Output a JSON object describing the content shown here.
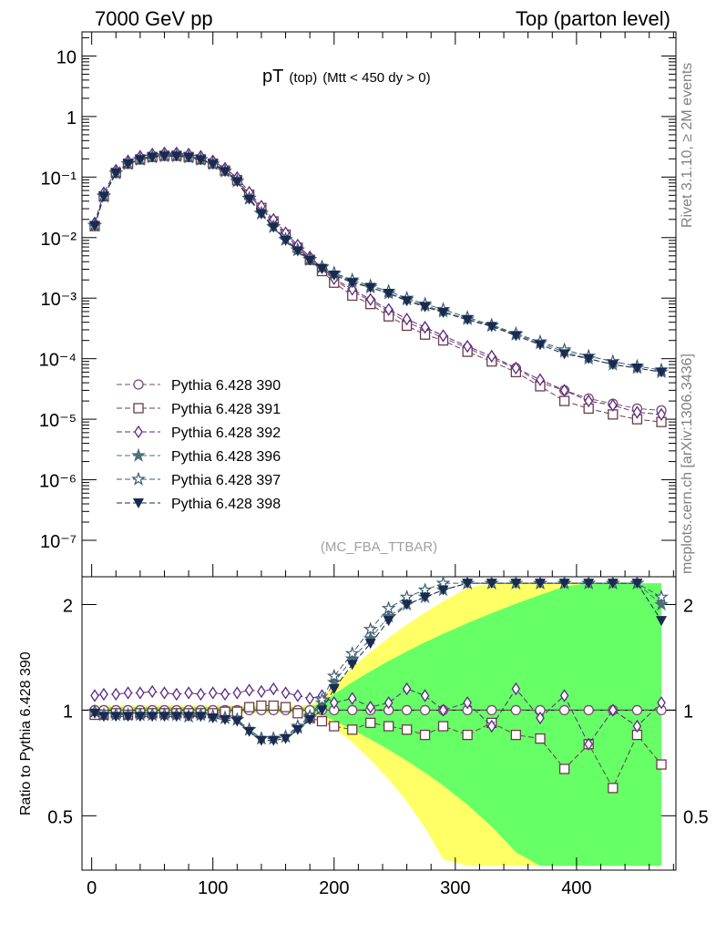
{
  "header": {
    "energy": "7000 GeV pp",
    "process": "Top (parton level)"
  },
  "side_labels": {
    "rivet": "Rivet 3.1.10, ≥ 2M events",
    "source": "mcplots.cern.ch [arXiv:1306.3436]"
  },
  "plot": {
    "title_main": "pT",
    "title_sub": "(top)",
    "title_cut": "(Mtt < 450 dy > 0)",
    "analysis_tag": "(MC_FBA_TTBAR)",
    "ratio_ylabel": "Ratio to Pythia 6.428 390"
  },
  "colors": {
    "s390": "#7b4a74",
    "s391": "#6e3a4a",
    "s392": "#5a2a82",
    "s396": "#4c7078",
    "s397": "#3a5a70",
    "s398": "#1a2a50",
    "band_yellow": "#ffff66",
    "band_green": "#66ff66"
  },
  "chart_data": {
    "type": "line",
    "x_axis": {
      "range": [
        -8,
        482
      ],
      "ticks": [
        0,
        100,
        200,
        300,
        400
      ]
    },
    "main_y_axis": {
      "scale": "log",
      "range": [
        2.5e-08,
        25
      ],
      "tick_labels": [
        "10⁻⁷",
        "10⁻⁶",
        "10⁻⁵",
        "10⁻⁴",
        "10⁻³",
        "10⁻²",
        "10⁻¹",
        "1",
        "10"
      ]
    },
    "ratio_y_axis": {
      "scale": "log",
      "range": [
        0.35,
        2.4
      ],
      "tick_labels": [
        "0.5",
        "1",
        "2"
      ]
    },
    "legend_position": "middle-left",
    "x": [
      2.5,
      10,
      20,
      30,
      40,
      50,
      60,
      70,
      80,
      90,
      100,
      110,
      120,
      130,
      140,
      150,
      160,
      170,
      180,
      190,
      200,
      215,
      230,
      245,
      260,
      275,
      290,
      310,
      330,
      350,
      370,
      390,
      410,
      430,
      450,
      470
    ],
    "series": [
      {
        "name": "Pythia 6.428 390",
        "marker": "circle-open",
        "values": [
          0.016,
          0.05,
          0.12,
          0.17,
          0.2,
          0.22,
          0.23,
          0.23,
          0.22,
          0.2,
          0.17,
          0.13,
          0.09,
          0.05,
          0.03,
          0.018,
          0.011,
          0.007,
          0.0045,
          0.003,
          0.002,
          0.0013,
          0.0009,
          0.0006,
          0.0004,
          0.0003,
          0.00022,
          0.00015,
          0.0001,
          7e-05,
          4e-05,
          3e-05,
          2.2e-05,
          1.8e-05,
          1.5e-05,
          1.4e-05
        ],
        "ratio": [
          1,
          1,
          1,
          1,
          1,
          1,
          1,
          1,
          1,
          1,
          1,
          1,
          1,
          1,
          1,
          1,
          1,
          1,
          1,
          1,
          1,
          1,
          1,
          1,
          1,
          1,
          1,
          1,
          1,
          1,
          1,
          1,
          1,
          1,
          1,
          1
        ]
      },
      {
        "name": "Pythia 6.428 391",
        "marker": "square-open",
        "values": [
          0.0155,
          0.048,
          0.117,
          0.166,
          0.196,
          0.215,
          0.225,
          0.225,
          0.215,
          0.196,
          0.167,
          0.128,
          0.089,
          0.051,
          0.031,
          0.0185,
          0.0112,
          0.0068,
          0.0043,
          0.0028,
          0.0018,
          0.0011,
          0.0008,
          0.0005,
          0.00035,
          0.00025,
          0.0002,
          0.00013,
          9e-05,
          6e-05,
          3.5e-05,
          2e-05,
          1.5e-05,
          1.2e-05,
          1e-05,
          9e-06
        ],
        "ratio": [
          0.97,
          0.97,
          0.98,
          0.97,
          0.98,
          0.98,
          0.98,
          0.98,
          0.98,
          0.98,
          0.98,
          0.99,
          0.99,
          1.02,
          1.03,
          1.03,
          1.02,
          0.98,
          0.95,
          0.93,
          0.9,
          0.88,
          0.92,
          0.9,
          0.88,
          0.85,
          0.9,
          0.85,
          0.92,
          0.85,
          0.83,
          0.68,
          0.8,
          0.6,
          0.85,
          0.7
        ]
      },
      {
        "name": "Pythia 6.428 392",
        "marker": "diamond-open",
        "values": [
          0.0175,
          0.055,
          0.13,
          0.185,
          0.22,
          0.24,
          0.25,
          0.25,
          0.24,
          0.22,
          0.185,
          0.14,
          0.098,
          0.056,
          0.033,
          0.02,
          0.012,
          0.0075,
          0.0048,
          0.0032,
          0.0021,
          0.0014,
          0.00095,
          0.00065,
          0.00045,
          0.00033,
          0.00024,
          0.00016,
          0.00011,
          7e-05,
          4.5e-05,
          3e-05,
          2e-05,
          1.7e-05,
          1.3e-05,
          1.2e-05
        ],
        "ratio": [
          1.1,
          1.11,
          1.11,
          1.12,
          1.12,
          1.13,
          1.12,
          1.11,
          1.12,
          1.11,
          1.12,
          1.11,
          1.12,
          1.14,
          1.13,
          1.15,
          1.12,
          1.1,
          1.08,
          1.1,
          1.05,
          1.08,
          1.02,
          1.05,
          1.15,
          1.1,
          1.0,
          1.05,
          0.9,
          1.15,
          0.95,
          1.1,
          0.8,
          1.0,
          0.9,
          1.05
        ]
      },
      {
        "name": "Pythia 6.428 396",
        "marker": "star-filled",
        "values": [
          0.0158,
          0.048,
          0.116,
          0.165,
          0.194,
          0.213,
          0.222,
          0.222,
          0.212,
          0.194,
          0.164,
          0.124,
          0.085,
          0.044,
          0.025,
          0.015,
          0.0092,
          0.0062,
          0.0043,
          0.0032,
          0.0025,
          0.0019,
          0.0015,
          0.0012,
          0.00095,
          0.00075,
          0.0006,
          0.00045,
          0.00035,
          0.00025,
          0.00018,
          0.00013,
          0.0001,
          8e-05,
          7e-05,
          6e-05
        ],
        "ratio": [
          0.99,
          0.97,
          0.97,
          0.97,
          0.97,
          0.97,
          0.97,
          0.97,
          0.96,
          0.97,
          0.96,
          0.95,
          0.94,
          0.88,
          0.83,
          0.83,
          0.84,
          0.89,
          0.95,
          1.05,
          1.2,
          1.4,
          1.6,
          1.85,
          2.0,
          2.1,
          2.2,
          2.3,
          2.3,
          2.3,
          2.3,
          2.3,
          2.3,
          2.3,
          2.3,
          2.0
        ]
      },
      {
        "name": "Pythia 6.428 397",
        "marker": "star-open",
        "values": [
          0.016,
          0.049,
          0.117,
          0.166,
          0.195,
          0.214,
          0.223,
          0.223,
          0.213,
          0.195,
          0.165,
          0.125,
          0.086,
          0.045,
          0.0255,
          0.0152,
          0.0094,
          0.0063,
          0.0044,
          0.0033,
          0.0026,
          0.002,
          0.0016,
          0.0013,
          0.001,
          0.0008,
          0.00065,
          0.00048,
          0.00036,
          0.00026,
          0.00019,
          0.00014,
          0.00011,
          9e-05,
          7.5e-05,
          6.5e-05
        ],
        "ratio": [
          0.99,
          0.97,
          0.97,
          0.97,
          0.97,
          0.97,
          0.97,
          0.97,
          0.96,
          0.97,
          0.96,
          0.95,
          0.94,
          0.88,
          0.83,
          0.83,
          0.84,
          0.9,
          0.96,
          1.07,
          1.25,
          1.45,
          1.7,
          1.95,
          2.1,
          2.2,
          2.3,
          2.3,
          2.3,
          2.3,
          2.3,
          2.3,
          2.3,
          2.3,
          2.3,
          2.1
        ]
      },
      {
        "name": "Pythia 6.428 398",
        "marker": "triangle-down-filled",
        "values": [
          0.0157,
          0.048,
          0.116,
          0.165,
          0.194,
          0.213,
          0.222,
          0.222,
          0.212,
          0.193,
          0.163,
          0.123,
          0.084,
          0.043,
          0.0245,
          0.0148,
          0.009,
          0.006,
          0.0042,
          0.0031,
          0.0024,
          0.0018,
          0.0015,
          0.0012,
          0.0009,
          0.00072,
          0.00058,
          0.00044,
          0.00034,
          0.00024,
          0.00017,
          0.00012,
          0.0001,
          8e-05,
          7e-05,
          6e-05
        ],
        "ratio": [
          0.98,
          0.96,
          0.96,
          0.96,
          0.96,
          0.96,
          0.96,
          0.96,
          0.96,
          0.96,
          0.95,
          0.94,
          0.93,
          0.87,
          0.82,
          0.82,
          0.83,
          0.88,
          0.94,
          1.0,
          1.15,
          1.35,
          1.55,
          1.8,
          2.0,
          2.1,
          2.2,
          2.3,
          2.3,
          2.3,
          2.3,
          2.3,
          2.3,
          2.3,
          2.3,
          1.8
        ]
      }
    ]
  }
}
